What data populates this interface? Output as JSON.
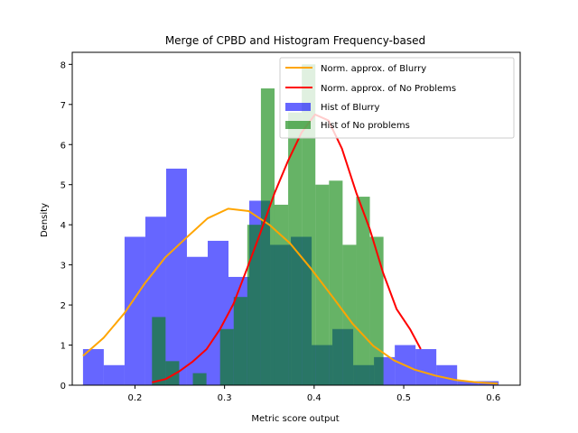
{
  "chart_data": {
    "type": "bar",
    "title": "Merge of CPBD and Histogram Frequency-based",
    "xlabel": "Metric score output",
    "ylabel": "Density",
    "xlim": [
      0.13,
      0.63
    ],
    "ylim": [
      0,
      8.3
    ],
    "xticks": [
      0.2,
      0.3,
      0.4,
      0.5,
      0.6
    ],
    "yticks": [
      0,
      1,
      2,
      3,
      4,
      5,
      6,
      7,
      8
    ],
    "legend_position": "upper right",
    "histograms": [
      {
        "name": "Hist of Blurry",
        "color": "#0000ff",
        "alpha": 0.6,
        "bin_start": 0.142,
        "bin_width": 0.0232,
        "values": [
          0.9,
          0.5,
          3.7,
          4.2,
          5.4,
          3.2,
          3.6,
          2.7,
          4.6,
          3.5,
          3.7,
          1.0,
          1.4,
          0.5,
          0.7,
          1.0,
          0.9,
          0.5,
          0.1,
          0.1
        ]
      },
      {
        "name": "Hist of No problems",
        "color": "#008000",
        "alpha": 0.6,
        "bin_start": 0.219,
        "bin_width": 0.0152,
        "values": [
          1.7,
          0.6,
          0.0,
          0.3,
          0.0,
          1.4,
          2.2,
          4.0,
          7.4,
          4.5,
          6.8,
          8.0,
          5.0,
          5.1,
          3.5,
          4.7,
          3.7
        ]
      }
    ],
    "lines": [
      {
        "name": "Norm. approx. of Blurry",
        "color": "#ffa500",
        "x": [
          0.142,
          0.165,
          0.188,
          0.211,
          0.234,
          0.258,
          0.281,
          0.304,
          0.327,
          0.35,
          0.373,
          0.396,
          0.42,
          0.443,
          0.466,
          0.489,
          0.512,
          0.535,
          0.558,
          0.582,
          0.605
        ],
        "y": [
          0.73,
          1.18,
          1.79,
          2.54,
          3.19,
          3.69,
          4.16,
          4.4,
          4.34,
          4.0,
          3.54,
          2.92,
          2.22,
          1.53,
          0.98,
          0.62,
          0.39,
          0.24,
          0.13,
          0.07,
          0.04
        ]
      },
      {
        "name": "Norm. approx. of No Problems",
        "color": "#ff0000",
        "x": [
          0.219,
          0.234,
          0.249,
          0.264,
          0.28,
          0.295,
          0.31,
          0.325,
          0.34,
          0.356,
          0.371,
          0.386,
          0.401,
          0.416,
          0.431,
          0.447,
          0.462,
          0.477,
          0.492,
          0.507,
          0.519
        ],
        "y": [
          0.07,
          0.15,
          0.34,
          0.58,
          0.9,
          1.4,
          2.03,
          2.9,
          3.8,
          4.8,
          5.6,
          6.3,
          6.75,
          6.6,
          5.9,
          4.8,
          3.9,
          2.8,
          1.9,
          1.4,
          0.9
        ]
      }
    ]
  }
}
